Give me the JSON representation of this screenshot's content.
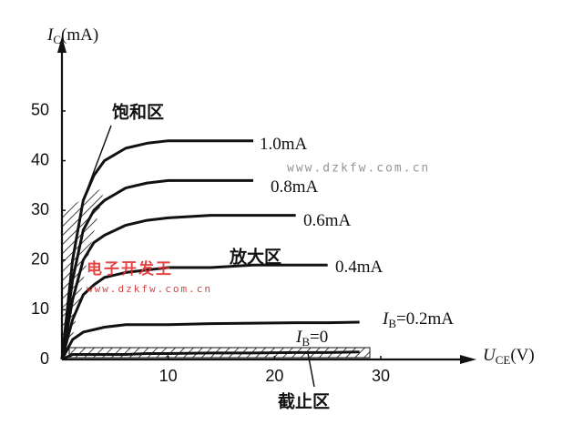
{
  "chart_data": {
    "type": "line",
    "y_label": [
      {
        "text": "I",
        "style": "italic"
      },
      {
        "text": "C",
        "style": "sub"
      },
      {
        "text": "(mA)"
      }
    ],
    "x_label": [
      {
        "text": "U",
        "style": "italic"
      },
      {
        "text": "CE",
        "style": "sub"
      },
      {
        "text": "(V)"
      }
    ],
    "x": [
      0,
      0.5,
      1,
      2,
      3,
      4,
      6,
      8,
      10,
      14,
      18,
      22,
      25,
      28
    ],
    "series": [
      {
        "name": [
          {
            "text": "1.0mA"
          }
        ],
        "color": "#111111",
        "values": [
          0,
          10,
          20,
          32,
          37,
          40,
          42.5,
          43.5,
          44,
          44,
          44,
          null,
          null,
          null
        ]
      },
      {
        "name": [
          {
            "text": "0.8mA"
          }
        ],
        "color": "#111111",
        "values": [
          0,
          8,
          16,
          26,
          30,
          32,
          34.5,
          35.5,
          36,
          36,
          36,
          null,
          null,
          null
        ]
      },
      {
        "name": [
          {
            "text": "0.6mA"
          }
        ],
        "color": "#111111",
        "values": [
          0,
          6,
          12,
          20,
          23.5,
          25,
          27,
          28,
          28.5,
          29,
          29,
          29,
          null,
          null
        ]
      },
      {
        "name": [
          {
            "text": "0.4mA"
          }
        ],
        "color": "#111111",
        "values": [
          0,
          4,
          8,
          13,
          15,
          16.5,
          17.5,
          18,
          18.5,
          18.5,
          19,
          19,
          19,
          null
        ]
      },
      {
        "name": [
          {
            "text": "I",
            "style": "italic"
          },
          {
            "text": "B",
            "style": "sub"
          },
          {
            "text": "=0.2mA"
          }
        ],
        "color": "#111111",
        "values": [
          0,
          2,
          4,
          5.5,
          6,
          6.5,
          7,
          7,
          7,
          7.2,
          7.3,
          7.4,
          7.4,
          7.5
        ]
      },
      {
        "name": [
          {
            "text": "I",
            "style": "italic"
          },
          {
            "text": "B",
            "style": "sub"
          },
          {
            "text": "=0"
          }
        ],
        "color": "#111111",
        "values": [
          0,
          0.5,
          1,
          1,
          1,
          1,
          1,
          1.2,
          1.2,
          1.3,
          1.3,
          1.4,
          1.4,
          1.5
        ]
      }
    ],
    "xlim": [
      0,
      39
    ],
    "ylim": [
      0,
      65
    ],
    "xticks": [
      10,
      20,
      30
    ],
    "yticks": [
      0,
      10,
      20,
      30,
      40,
      50
    ],
    "annotations": [
      "饱和区",
      "放大区",
      "截止区"
    ],
    "watermarks": [
      {
        "text": "www.dzkfw.com.cn",
        "color": "#888888"
      },
      {
        "text": "电子开发王",
        "color": "#e03030"
      },
      {
        "text": "www.dzkfw.com.cn",
        "color": "#d03030"
      }
    ]
  }
}
